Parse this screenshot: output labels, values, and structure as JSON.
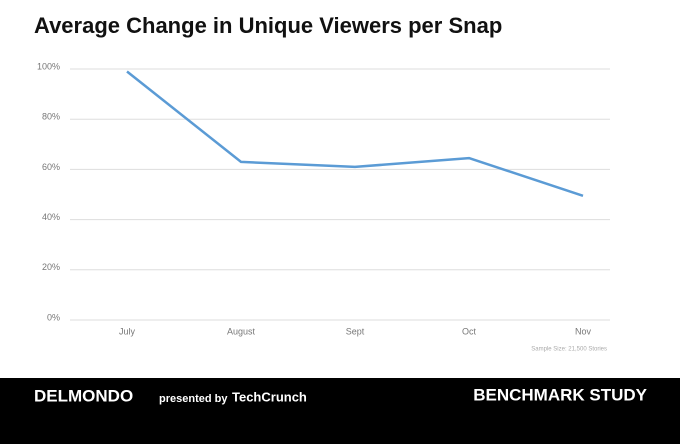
{
  "chart_data": {
    "type": "line",
    "title": "Average Change in Unique Viewers per Snap",
    "categories": [
      "July",
      "August",
      "Sept",
      "Oct",
      "Nov"
    ],
    "series": [
      {
        "name": null,
        "color": "#5b9bd5",
        "values": [
          99,
          63,
          61,
          64.5,
          49.5
        ]
      }
    ],
    "ylim": [
      0,
      100
    ],
    "yticks": [
      {
        "value": 0,
        "label": "0%"
      },
      {
        "value": 20,
        "label": "20%"
      },
      {
        "value": 40,
        "label": "40%"
      },
      {
        "value": 60,
        "label": "60%"
      },
      {
        "value": 80,
        "label": "80%"
      },
      {
        "value": 100,
        "label": "100%"
      }
    ],
    "grid": true,
    "annotation": "Sample Size: 21,500 Stories"
  },
  "footer": {
    "brand": "DELMONDO",
    "presented": "presented by",
    "partner": "TechCrunch",
    "study": "BENCHMARK STUDY"
  }
}
